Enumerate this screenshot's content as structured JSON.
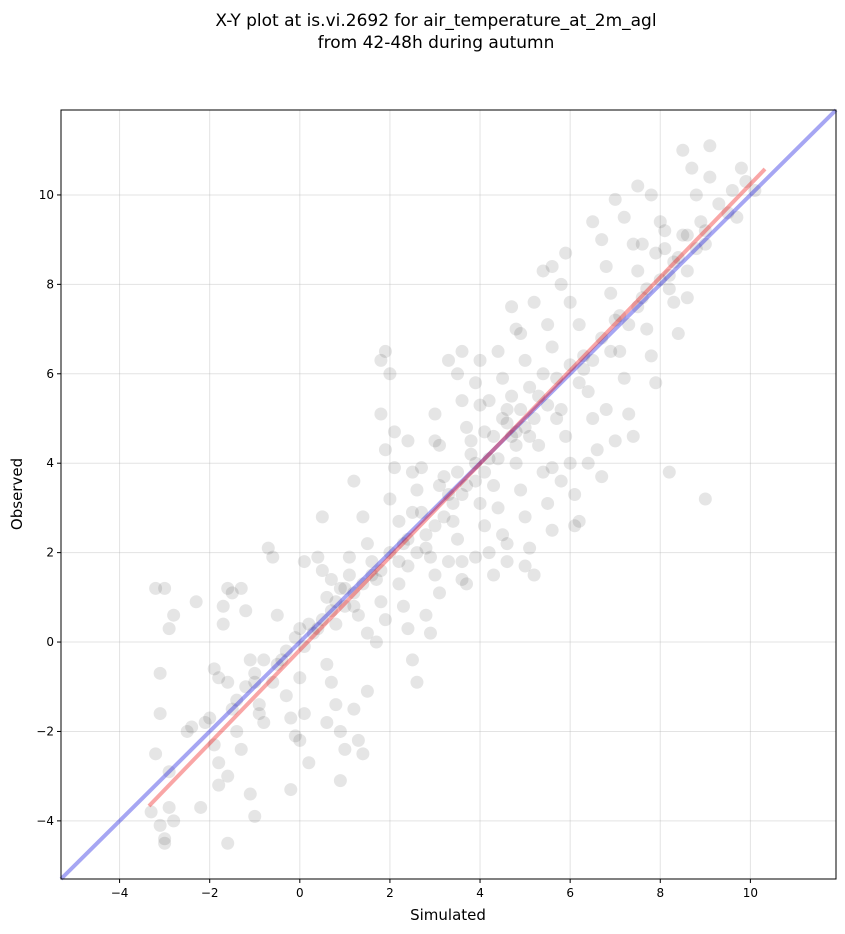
{
  "chart_data": {
    "type": "scatter",
    "title_line1": "X-Y plot at is.vi.2692 for air_temperature_at_2m_agl",
    "title_line2": "from 42-48h during autumn",
    "xlabel": "Simulated",
    "ylabel": "Observed",
    "xlim": [
      -5.3,
      11.9
    ],
    "ylim": [
      -5.3,
      11.9
    ],
    "xticks": [
      -4,
      -2,
      0,
      2,
      4,
      6,
      8,
      10
    ],
    "yticks": [
      -4,
      -2,
      0,
      2,
      4,
      6,
      8,
      10
    ],
    "grid": true,
    "point_color": "#000000",
    "point_alpha": 0.1,
    "points": [
      [
        -3.3,
        -3.8
      ],
      [
        -3.2,
        -2.5
      ],
      [
        -3.1,
        -4.1
      ],
      [
        -3.0,
        -4.4
      ],
      [
        -2.9,
        -3.7
      ],
      [
        -3.2,
        1.2
      ],
      [
        -3.0,
        1.2
      ],
      [
        -2.9,
        0.3
      ],
      [
        -2.8,
        0.6
      ],
      [
        -3.1,
        -0.7
      ],
      [
        -3.1,
        -1.6
      ],
      [
        -2.9,
        -2.9
      ],
      [
        -2.8,
        -4.0
      ],
      [
        -3.0,
        -4.5
      ],
      [
        -2.5,
        -2.0
      ],
      [
        -2.4,
        -1.9
      ],
      [
        -2.3,
        0.9
      ],
      [
        -2.2,
        -3.7
      ],
      [
        -2.1,
        -1.8
      ],
      [
        -2.0,
        -1.7
      ],
      [
        -1.9,
        -2.3
      ],
      [
        -1.8,
        -2.7
      ],
      [
        -1.9,
        -0.6
      ],
      [
        -1.8,
        -0.8
      ],
      [
        -1.7,
        0.4
      ],
      [
        -1.6,
        1.2
      ],
      [
        -1.5,
        1.1
      ],
      [
        -1.7,
        0.8
      ],
      [
        -1.6,
        -0.9
      ],
      [
        -1.5,
        -1.5
      ],
      [
        -1.4,
        -2.0
      ],
      [
        -1.3,
        -2.4
      ],
      [
        -1.6,
        -3.0
      ],
      [
        -1.8,
        -3.2
      ],
      [
        -1.6,
        -4.5
      ],
      [
        -1.3,
        1.2
      ],
      [
        -1.2,
        0.7
      ],
      [
        -1.1,
        -0.4
      ],
      [
        -1.0,
        -0.9
      ],
      [
        -0.9,
        -1.4
      ],
      [
        -1.1,
        -3.4
      ],
      [
        -1.0,
        -3.9
      ],
      [
        -0.8,
        -1.8
      ],
      [
        -0.7,
        2.1
      ],
      [
        -0.6,
        1.9
      ],
      [
        -0.5,
        0.6
      ],
      [
        -0.4,
        -0.4
      ],
      [
        -0.3,
        -1.2
      ],
      [
        -0.2,
        -1.7
      ],
      [
        -0.1,
        -2.1
      ],
      [
        -0.2,
        -3.3
      ],
      [
        0.1,
        1.8
      ],
      [
        0.0,
        0.3
      ],
      [
        0.1,
        -0.1
      ],
      [
        0.0,
        -0.8
      ],
      [
        0.1,
        -1.6
      ],
      [
        0.0,
        -2.2
      ],
      [
        0.2,
        -2.7
      ],
      [
        0.3,
        0.2
      ],
      [
        0.4,
        0.3
      ],
      [
        0.5,
        0.5
      ],
      [
        0.4,
        1.9
      ],
      [
        0.5,
        1.6
      ],
      [
        0.6,
        1.0
      ],
      [
        0.7,
        0.7
      ],
      [
        0.8,
        0.4
      ],
      [
        0.6,
        -0.5
      ],
      [
        0.7,
        -0.9
      ],
      [
        0.8,
        -1.4
      ],
      [
        0.6,
        -1.8
      ],
      [
        0.5,
        2.8
      ],
      [
        0.9,
        1.2
      ],
      [
        1.0,
        0.8
      ],
      [
        1.1,
        1.5
      ],
      [
        1.2,
        1.1
      ],
      [
        1.3,
        0.6
      ],
      [
        0.9,
        -2.0
      ],
      [
        1.0,
        -2.4
      ],
      [
        0.9,
        -3.1
      ],
      [
        1.2,
        -1.5
      ],
      [
        1.3,
        -2.2
      ],
      [
        1.4,
        -2.5
      ],
      [
        1.5,
        -1.1
      ],
      [
        1.2,
        3.6
      ],
      [
        1.4,
        2.8
      ],
      [
        1.5,
        2.2
      ],
      [
        1.6,
        1.8
      ],
      [
        1.7,
        1.4
      ],
      [
        1.8,
        0.9
      ],
      [
        1.9,
        0.5
      ],
      [
        1.8,
        6.3
      ],
      [
        1.9,
        6.5
      ],
      [
        2.0,
        6.0
      ],
      [
        1.8,
        5.1
      ],
      [
        1.9,
        4.3
      ],
      [
        2.1,
        3.9
      ],
      [
        2.0,
        3.2
      ],
      [
        2.2,
        2.7
      ],
      [
        2.3,
        2.2
      ],
      [
        2.4,
        1.7
      ],
      [
        2.2,
        1.3
      ],
      [
        2.3,
        0.8
      ],
      [
        2.4,
        0.3
      ],
      [
        2.5,
        -0.4
      ],
      [
        2.6,
        -0.9
      ],
      [
        2.1,
        4.7
      ],
      [
        2.4,
        4.5
      ],
      [
        2.5,
        3.8
      ],
      [
        2.6,
        3.4
      ],
      [
        2.7,
        2.9
      ],
      [
        2.8,
        2.4
      ],
      [
        2.9,
        1.9
      ],
      [
        3.0,
        1.5
      ],
      [
        3.1,
        1.1
      ],
      [
        2.8,
        0.6
      ],
      [
        2.9,
        0.2
      ],
      [
        3.0,
        5.1
      ],
      [
        3.1,
        4.4
      ],
      [
        3.2,
        3.7
      ],
      [
        3.3,
        3.3
      ],
      [
        3.4,
        2.7
      ],
      [
        3.5,
        2.3
      ],
      [
        3.6,
        1.8
      ],
      [
        3.7,
        1.3
      ],
      [
        3.3,
        6.3
      ],
      [
        3.5,
        6.0
      ],
      [
        3.6,
        5.4
      ],
      [
        3.7,
        4.8
      ],
      [
        3.8,
        4.2
      ],
      [
        3.9,
        3.6
      ],
      [
        4.0,
        3.1
      ],
      [
        4.1,
        2.6
      ],
      [
        4.2,
        2.0
      ],
      [
        4.3,
        1.5
      ],
      [
        3.9,
        5.8
      ],
      [
        4.0,
        5.3
      ],
      [
        4.1,
        4.7
      ],
      [
        4.2,
        4.1
      ],
      [
        4.3,
        3.5
      ],
      [
        4.4,
        3.0
      ],
      [
        4.5,
        2.4
      ],
      [
        4.6,
        1.8
      ],
      [
        4.4,
        6.5
      ],
      [
        4.5,
        5.9
      ],
      [
        4.6,
        5.2
      ],
      [
        4.7,
        4.6
      ],
      [
        4.8,
        4.0
      ],
      [
        4.9,
        3.4
      ],
      [
        5.0,
        2.8
      ],
      [
        5.1,
        2.1
      ],
      [
        4.7,
        7.5
      ],
      [
        4.9,
        6.9
      ],
      [
        5.0,
        6.3
      ],
      [
        5.1,
        5.7
      ],
      [
        5.2,
        5.0
      ],
      [
        5.3,
        4.4
      ],
      [
        5.4,
        3.8
      ],
      [
        5.5,
        3.1
      ],
      [
        5.6,
        2.5
      ],
      [
        5.2,
        1.5
      ],
      [
        5.5,
        7.1
      ],
      [
        5.6,
        6.6
      ],
      [
        5.7,
        5.9
      ],
      [
        5.8,
        5.2
      ],
      [
        5.9,
        4.6
      ],
      [
        6.0,
        4.0
      ],
      [
        6.1,
        3.3
      ],
      [
        6.2,
        2.7
      ],
      [
        5.4,
        8.3
      ],
      [
        5.8,
        8.0
      ],
      [
        6.0,
        7.6
      ],
      [
        6.2,
        7.1
      ],
      [
        6.3,
        6.4
      ],
      [
        6.4,
        5.6
      ],
      [
        6.5,
        5.0
      ],
      [
        6.6,
        4.3
      ],
      [
        6.7,
        3.7
      ],
      [
        6.5,
        9.4
      ],
      [
        6.7,
        9.0
      ],
      [
        6.8,
        8.4
      ],
      [
        6.9,
        7.8
      ],
      [
        7.0,
        7.2
      ],
      [
        7.1,
        6.5
      ],
      [
        7.2,
        5.9
      ],
      [
        7.3,
        5.1
      ],
      [
        7.4,
        4.6
      ],
      [
        7.0,
        9.9
      ],
      [
        7.2,
        9.5
      ],
      [
        7.4,
        8.9
      ],
      [
        7.5,
        8.3
      ],
      [
        7.6,
        7.7
      ],
      [
        7.7,
        7.0
      ],
      [
        7.8,
        6.4
      ],
      [
        7.9,
        5.8
      ],
      [
        7.5,
        10.2
      ],
      [
        7.8,
        10.0
      ],
      [
        8.0,
        9.4
      ],
      [
        8.1,
        8.8
      ],
      [
        8.2,
        8.2
      ],
      [
        8.3,
        7.6
      ],
      [
        8.4,
        6.9
      ],
      [
        8.2,
        3.8
      ],
      [
        8.5,
        11.0
      ],
      [
        8.7,
        10.6
      ],
      [
        8.8,
        10.0
      ],
      [
        8.9,
        9.4
      ],
      [
        9.0,
        8.9
      ],
      [
        8.6,
        7.7
      ],
      [
        9.1,
        10.4
      ],
      [
        9.3,
        9.8
      ],
      [
        9.5,
        9.6
      ],
      [
        9.6,
        10.1
      ],
      [
        9.7,
        9.5
      ],
      [
        9.8,
        10.6
      ],
      [
        9.9,
        10.3
      ],
      [
        10.1,
        10.1
      ],
      [
        9.0,
        3.2
      ],
      [
        9.1,
        11.1
      ],
      [
        8.6,
        9.1
      ],
      [
        8.3,
        8.5
      ],
      [
        4.3,
        4.6
      ],
      [
        4.5,
        5.0
      ],
      [
        4.6,
        4.9
      ],
      [
        4.8,
        4.7
      ],
      [
        4.9,
        5.2
      ],
      [
        5.0,
        4.8
      ],
      [
        4.7,
        5.5
      ],
      [
        4.4,
        4.1
      ],
      [
        4.8,
        4.4
      ],
      [
        5.1,
        4.6
      ],
      [
        3.5,
        3.8
      ],
      [
        3.7,
        3.5
      ],
      [
        3.9,
        4.0
      ],
      [
        4.1,
        3.8
      ],
      [
        3.8,
        4.5
      ],
      [
        4.2,
        5.4
      ],
      [
        5.3,
        5.5
      ],
      [
        5.5,
        5.3
      ],
      [
        5.4,
        6.0
      ],
      [
        5.7,
        5.0
      ],
      [
        2.0,
        2.0
      ],
      [
        2.2,
        1.8
      ],
      [
        2.4,
        2.3
      ],
      [
        2.6,
        2.0
      ],
      [
        2.8,
        2.1
      ],
      [
        3.0,
        2.6
      ],
      [
        3.2,
        2.8
      ],
      [
        3.4,
        3.1
      ],
      [
        3.6,
        3.3
      ],
      [
        3.1,
        3.5
      ],
      [
        0.8,
        0.9
      ],
      [
        1.0,
        1.2
      ],
      [
        1.2,
        0.8
      ],
      [
        1.4,
        1.3
      ],
      [
        1.6,
        1.5
      ],
      [
        1.8,
        1.6
      ],
      [
        1.1,
        1.9
      ],
      [
        0.7,
        1.4
      ],
      [
        1.5,
        0.2
      ],
      [
        1.7,
        0.0
      ],
      [
        -0.5,
        -0.5
      ],
      [
        -0.3,
        -0.2
      ],
      [
        -0.1,
        0.1
      ],
      [
        0.2,
        0.4
      ],
      [
        -0.6,
        -0.9
      ],
      [
        -0.8,
        -0.4
      ],
      [
        -1.0,
        -0.7
      ],
      [
        -1.2,
        -1.0
      ],
      [
        -1.4,
        -1.3
      ],
      [
        -0.9,
        -1.6
      ],
      [
        6.3,
        6.1
      ],
      [
        6.5,
        6.3
      ],
      [
        6.7,
        6.8
      ],
      [
        6.9,
        6.5
      ],
      [
        6.2,
        5.8
      ],
      [
        6.0,
        6.2
      ],
      [
        7.1,
        7.3
      ],
      [
        7.3,
        7.1
      ],
      [
        7.5,
        7.5
      ],
      [
        7.7,
        7.9
      ],
      [
        8.0,
        8.1
      ],
      [
        8.2,
        7.9
      ],
      [
        8.4,
        8.6
      ],
      [
        8.6,
        8.3
      ],
      [
        8.8,
        8.8
      ],
      [
        7.9,
        8.7
      ],
      [
        7.6,
        8.9
      ],
      [
        8.1,
        9.2
      ],
      [
        8.5,
        9.1
      ],
      [
        9.0,
        9.2
      ],
      [
        3.0,
        4.5
      ],
      [
        2.7,
        3.9
      ],
      [
        2.5,
        2.9
      ],
      [
        3.3,
        1.8
      ],
      [
        3.6,
        1.4
      ],
      [
        3.9,
        1.9
      ],
      [
        4.6,
        2.2
      ],
      [
        5.0,
        1.7
      ],
      [
        4.0,
        6.3
      ],
      [
        3.6,
        6.5
      ],
      [
        5.8,
        3.6
      ],
      [
        6.1,
        2.6
      ],
      [
        5.6,
        3.9
      ],
      [
        6.4,
        4.0
      ],
      [
        7.0,
        4.5
      ],
      [
        6.8,
        5.2
      ],
      [
        5.2,
        7.6
      ],
      [
        5.6,
        8.4
      ],
      [
        4.8,
        7.0
      ],
      [
        5.9,
        8.7
      ]
    ]
  }
}
